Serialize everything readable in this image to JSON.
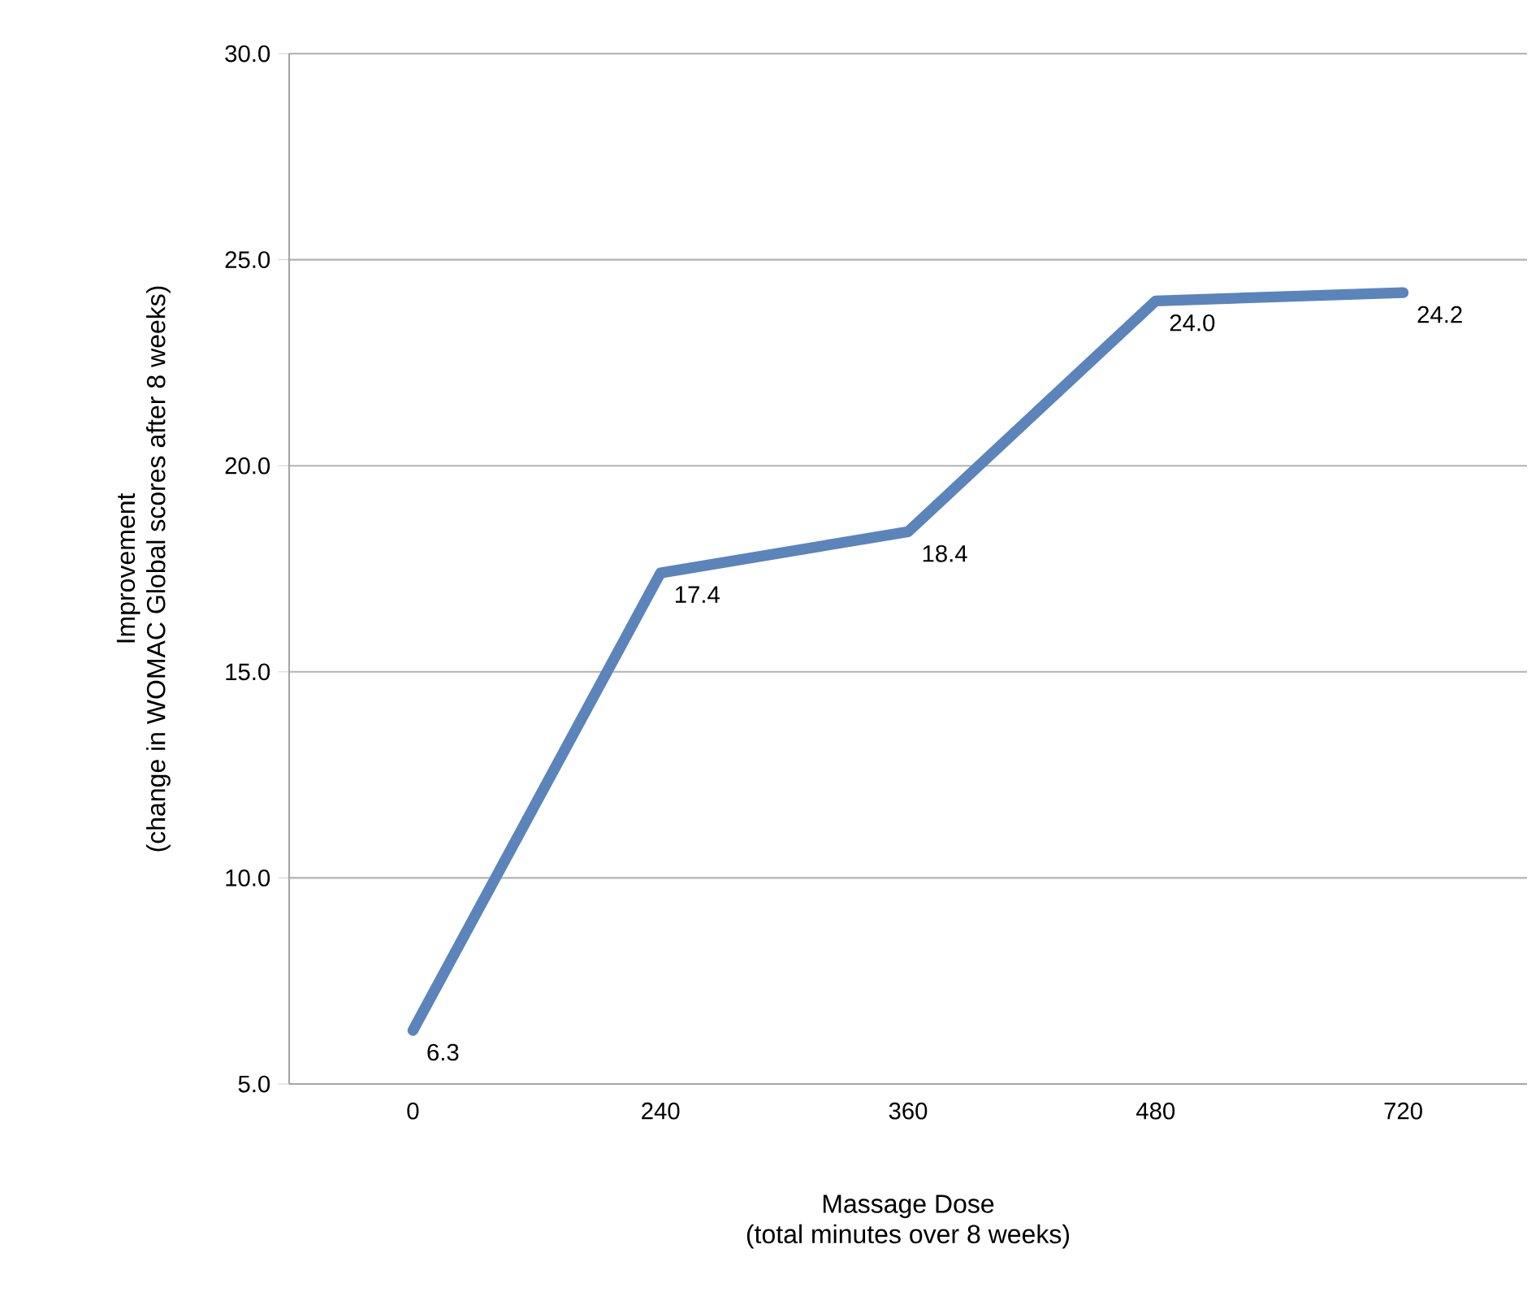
{
  "chart_data": {
    "type": "line",
    "xlabel": "Massage Dose\n(total minutes over 8 weeks)",
    "ylabel": "Improvement\n(change in WOMAC Global scores after 8 weeks)",
    "categories": [
      "0",
      "240",
      "360",
      "480",
      "720"
    ],
    "series": [
      {
        "color": "#5b84bb",
        "values": [
          6.3,
          17.4,
          18.4,
          24,
          24.2
        ],
        "value_labels": [
          "6.3",
          "17.4",
          "18.4",
          "24.0",
          "24.2"
        ]
      }
    ],
    "ylim": [
      5,
      30
    ],
    "yticks": [
      {
        "value": 5,
        "label": "5.0"
      },
      {
        "value": 10,
        "label": "10.0"
      },
      {
        "value": 15,
        "label": "15.0"
      },
      {
        "value": 20,
        "label": "20.0"
      },
      {
        "value": 25,
        "label": "25.0"
      },
      {
        "value": 30,
        "label": "30.0"
      }
    ],
    "grid": "y",
    "marker": "none",
    "line_style": "solid"
  }
}
